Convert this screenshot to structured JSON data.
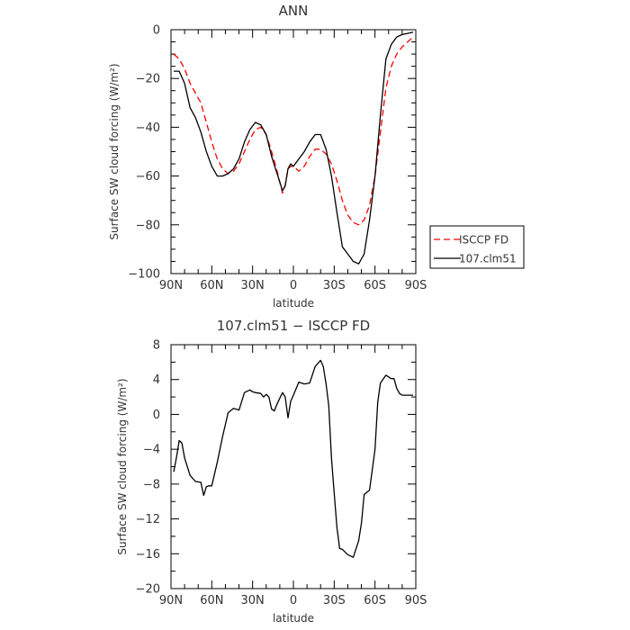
{
  "chart_data": [
    {
      "type": "line",
      "title": "ANN",
      "xlabel": "latitude",
      "ylabel": "Surface SW cloud forcing (W/m²)",
      "xlim": [
        90,
        -90
      ],
      "ylim": [
        -100,
        0
      ],
      "xticks": [
        90,
        60,
        30,
        0,
        -30,
        -60,
        -90
      ],
      "xtick_labels": [
        "90N",
        "60N",
        "30N",
        "0",
        "30S",
        "60S",
        "90S"
      ],
      "yticks": [
        0,
        -20,
        -40,
        -60,
        -80,
        -100
      ],
      "ytick_labels": [
        "0",
        "−20",
        "−40",
        "−60",
        "−80",
        "−100"
      ],
      "legend": {
        "placement": "right",
        "entries": [
          "ISCCP FD",
          "107.clm51"
        ]
      },
      "series": [
        {
          "name": "ISCCP FD",
          "color": "#ff0000",
          "dash": "dashed",
          "x": [
            88,
            84,
            80,
            76,
            72,
            68,
            64,
            60,
            56,
            52,
            48,
            44,
            40,
            36,
            32,
            28,
            24,
            20,
            16,
            12,
            8,
            6,
            4,
            2,
            0,
            -4,
            -8,
            -12,
            -16,
            -20,
            -24,
            -28,
            -32,
            -36,
            -40,
            -44,
            -48,
            -52,
            -56,
            -60,
            -64,
            -68,
            -72,
            -76,
            -80,
            -84,
            -88
          ],
          "y": [
            -10,
            -12,
            -16,
            -22,
            -26,
            -30,
            -38,
            -46,
            -53,
            -57,
            -59,
            -58,
            -55,
            -50,
            -45,
            -41,
            -40,
            -43,
            -50,
            -58,
            -67,
            -64,
            -57,
            -56,
            -56,
            -58,
            -56,
            -52,
            -49,
            -49,
            -51,
            -55,
            -62,
            -70,
            -76,
            -79,
            -80,
            -78,
            -72,
            -60,
            -42,
            -24,
            -15,
            -10,
            -7,
            -5,
            -3
          ]
        },
        {
          "name": "107.clm51",
          "color": "#000000",
          "dash": "solid",
          "x": [
            88,
            84,
            80,
            76,
            72,
            68,
            64,
            60,
            56,
            52,
            48,
            44,
            40,
            36,
            32,
            28,
            24,
            20,
            16,
            12,
            8,
            6,
            4,
            2,
            0,
            -4,
            -8,
            -12,
            -16,
            -20,
            -24,
            -28,
            -32,
            -36,
            -40,
            -44,
            -48,
            -52,
            -56,
            -60,
            -64,
            -68,
            -72,
            -76,
            -80,
            -84,
            -88
          ],
          "y": [
            -17,
            -17,
            -22,
            -32,
            -36,
            -42,
            -50,
            -56,
            -60,
            -60,
            -59,
            -57,
            -53,
            -46,
            -41,
            -38,
            -39,
            -43,
            -52,
            -59,
            -66,
            -64,
            -57,
            -55,
            -56,
            -53,
            -50,
            -46,
            -43,
            -43,
            -49,
            -60,
            -75,
            -89,
            -92,
            -95,
            -96,
            -92,
            -78,
            -60,
            -35,
            -12,
            -6,
            -3,
            -2,
            -1.5,
            -1
          ]
        }
      ]
    },
    {
      "type": "line",
      "title": "107.clm51 − ISCCP FD",
      "xlabel": "latitude",
      "ylabel": "Surface SW cloud forcing (W/m²)",
      "xlim": [
        90,
        -90
      ],
      "ylim": [
        -20,
        8
      ],
      "xticks": [
        90,
        60,
        30,
        0,
        -30,
        -60,
        -90
      ],
      "xtick_labels": [
        "90N",
        "60N",
        "30N",
        "0",
        "30S",
        "60S",
        "90S"
      ],
      "yticks": [
        8,
        4,
        0,
        -4,
        -8,
        -12,
        -16,
        -20
      ],
      "ytick_labels": [
        "8",
        "4",
        "0",
        "−4",
        "−8",
        "−12",
        "−16",
        "−20"
      ],
      "series": [
        {
          "color": "#000000",
          "dash": "solid",
          "x": [
            88,
            86,
            84,
            82,
            80,
            76,
            72,
            68,
            66,
            64,
            62,
            60,
            56,
            52,
            48,
            44,
            40,
            36,
            32,
            30,
            28,
            24,
            22,
            20,
            18,
            16,
            14,
            12,
            8,
            6,
            4,
            2,
            0,
            -4,
            -8,
            -12,
            -16,
            -20,
            -22,
            -24,
            -26,
            -28,
            -30,
            -32,
            -34,
            -36,
            -40,
            -44,
            -48,
            -50,
            -52,
            -56,
            -60,
            -62,
            -64,
            -68,
            -72,
            -74,
            -76,
            -78,
            -80,
            -84,
            -88
          ],
          "y": [
            -6.6,
            -5,
            -3,
            -3.3,
            -5,
            -7,
            -7.7,
            -7.8,
            -9.3,
            -8.3,
            -8.2,
            -8.2,
            -5.5,
            -2.5,
            0.2,
            0.7,
            0.5,
            2.5,
            2.8,
            2.6,
            2.5,
            2.4,
            2,
            2.3,
            2.0,
            0.6,
            0.4,
            1.2,
            2.5,
            2,
            -0.4,
            1.5,
            2.2,
            3.7,
            3.5,
            3.6,
            5.5,
            6.2,
            5.5,
            3.5,
            1,
            -5,
            -9,
            -13,
            -15.4,
            -15.5,
            -16.1,
            -16.4,
            -14.5,
            -12.5,
            -9.2,
            -8.7,
            -4,
            1.4,
            3.6,
            4.5,
            4.1,
            4.1,
            3,
            2.4,
            2.2,
            2.2,
            2.2
          ]
        }
      ]
    }
  ]
}
